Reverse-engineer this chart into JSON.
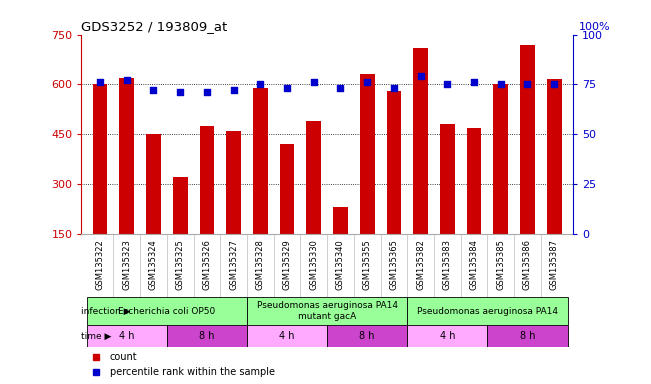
{
  "title": "GDS3252 / 193809_at",
  "samples": [
    "GSM135322",
    "GSM135323",
    "GSM135324",
    "GSM135325",
    "GSM135326",
    "GSM135327",
    "GSM135328",
    "GSM135329",
    "GSM135330",
    "GSM135340",
    "GSM135355",
    "GSM135365",
    "GSM135382",
    "GSM135383",
    "GSM135384",
    "GSM135385",
    "GSM135386",
    "GSM135387"
  ],
  "counts": [
    600,
    620,
    450,
    320,
    475,
    460,
    590,
    420,
    490,
    230,
    630,
    580,
    710,
    480,
    470,
    600,
    720,
    615
  ],
  "percentile_ranks": [
    76,
    77,
    72,
    71,
    71,
    72,
    75,
    73,
    76,
    73,
    76,
    73,
    79,
    75,
    76,
    75,
    75,
    75
  ],
  "ylim_left": [
    150,
    750
  ],
  "ylim_right": [
    0,
    100
  ],
  "yticks_left": [
    150,
    300,
    450,
    600,
    750
  ],
  "yticks_right": [
    0,
    25,
    50,
    75,
    100
  ],
  "bar_color": "#cc0000",
  "dot_color": "#0000cc",
  "left_axis_color": "#cc0000",
  "right_axis_color": "#0000cc",
  "tick_label_bg": "#d0d0d0",
  "infection_groups": [
    {
      "label": "Escherichia coli OP50",
      "start": 0,
      "end": 6,
      "color": "#99ff99"
    },
    {
      "label": "Pseudomonas aeruginosa PA14\nmutant gacA",
      "start": 6,
      "end": 12,
      "color": "#99ff99"
    },
    {
      "label": "Pseudomonas aeruginosa PA14",
      "start": 12,
      "end": 18,
      "color": "#99ff99"
    }
  ],
  "time_groups": [
    {
      "label": "4 h",
      "start": 0,
      "end": 3,
      "color": "#ffaaff"
    },
    {
      "label": "8 h",
      "start": 3,
      "end": 6,
      "color": "#cc44cc"
    },
    {
      "label": "4 h",
      "start": 6,
      "end": 9,
      "color": "#ffaaff"
    },
    {
      "label": "8 h",
      "start": 9,
      "end": 12,
      "color": "#cc44cc"
    },
    {
      "label": "4 h",
      "start": 12,
      "end": 15,
      "color": "#ffaaff"
    },
    {
      "label": "8 h",
      "start": 15,
      "end": 18,
      "color": "#cc44cc"
    }
  ]
}
